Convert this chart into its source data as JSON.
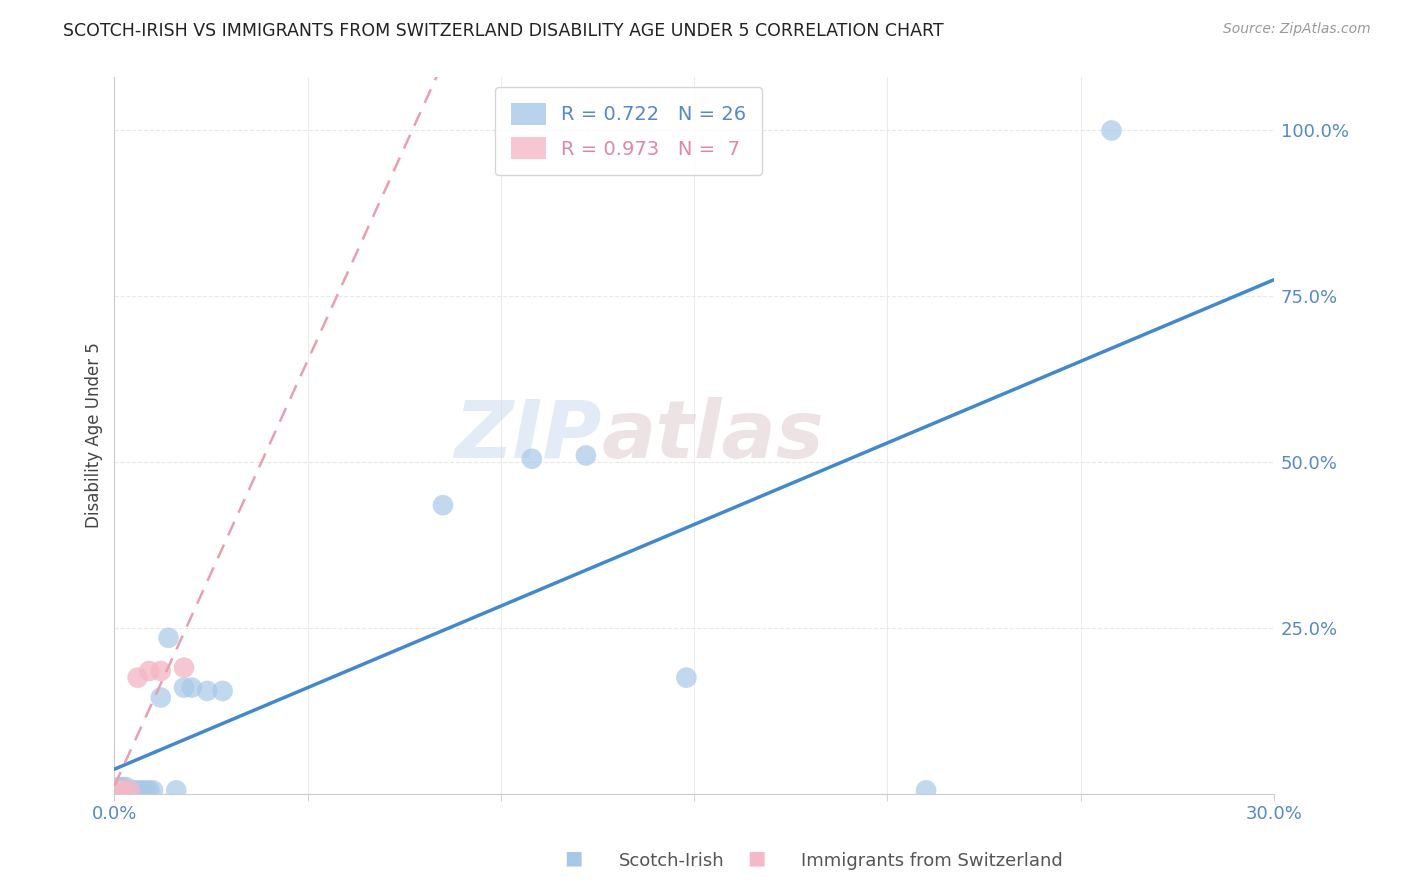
{
  "title": "SCOTCH-IRISH VS IMMIGRANTS FROM SWITZERLAND DISABILITY AGE UNDER 5 CORRELATION CHART",
  "source": "Source: ZipAtlas.com",
  "ylabel_label": "Disability Age Under 5",
  "xlim": [
    0.0,
    0.3
  ],
  "ylim": [
    0.0,
    1.08
  ],
  "scotch_irish_x": [
    0.001,
    0.001,
    0.002,
    0.002,
    0.003,
    0.003,
    0.004,
    0.005,
    0.006,
    0.007,
    0.008,
    0.009,
    0.01,
    0.012,
    0.014,
    0.016,
    0.018,
    0.02,
    0.024,
    0.028,
    0.085,
    0.108,
    0.122,
    0.148,
    0.21,
    0.258
  ],
  "scotch_irish_y": [
    0.01,
    0.005,
    0.01,
    0.005,
    0.01,
    0.005,
    0.005,
    0.005,
    0.005,
    0.005,
    0.005,
    0.005,
    0.005,
    0.145,
    0.235,
    0.005,
    0.16,
    0.16,
    0.155,
    0.155,
    0.435,
    0.505,
    0.51,
    0.175,
    0.005,
    1.0
  ],
  "swiss_x": [
    0.001,
    0.002,
    0.004,
    0.006,
    0.009,
    0.012,
    0.018
  ],
  "swiss_y": [
    0.005,
    0.005,
    0.005,
    0.175,
    0.185,
    0.185,
    0.19
  ],
  "scotch_irish_R": 0.722,
  "scotch_irish_N": 26,
  "swiss_R": 0.973,
  "swiss_N": 7,
  "scotch_irish_color": "#a8c8e8",
  "swiss_color": "#f4b8c8",
  "scotch_irish_line_color": "#4488cc",
  "swiss_line_color": "#e8a0b0",
  "watermark_line1": "ZIP",
  "watermark_line2": "atlas",
  "background_color": "#ffffff",
  "grid_color": "#e8e8e8",
  "yticks": [
    0.0,
    0.25,
    0.5,
    0.75,
    1.0
  ],
  "ytick_labels": [
    "",
    "25.0%",
    "50.0%",
    "75.0%",
    "100.0%"
  ],
  "xticks_major": [
    0.0,
    0.3
  ],
  "xticks_minor": [
    0.05,
    0.1,
    0.15,
    0.2,
    0.25
  ],
  "legend_si_label": "R = 0.722   N = 26",
  "legend_sw_label": "R = 0.973   N =  7",
  "bottom_legend_si": "Scotch-Irish",
  "bottom_legend_sw": "Immigrants from Switzerland"
}
